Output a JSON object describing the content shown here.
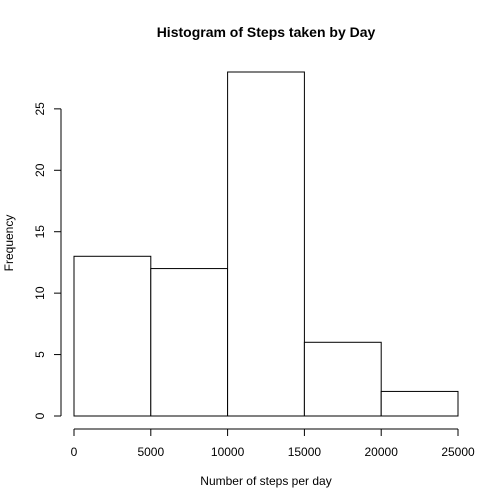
{
  "chart_data": {
    "type": "bar",
    "title": "Histogram of Steps taken by Day",
    "xlabel": "Number of steps per day",
    "ylabel": "Frequency",
    "bins": [
      {
        "from": 0,
        "to": 5000,
        "count": 13
      },
      {
        "from": 5000,
        "to": 10000,
        "count": 12
      },
      {
        "from": 10000,
        "to": 15000,
        "count": 28
      },
      {
        "from": 15000,
        "to": 20000,
        "count": 6
      },
      {
        "from": 20000,
        "to": 25000,
        "count": 2
      }
    ],
    "xlim": [
      0,
      25000
    ],
    "ylim": [
      0,
      28
    ],
    "xticks": [
      0,
      5000,
      10000,
      15000,
      20000,
      25000
    ],
    "yticks": [
      0,
      5,
      10,
      15,
      20,
      25
    ],
    "grid": false,
    "bar_fill": "#ffffff",
    "bar_stroke": "#000000"
  }
}
